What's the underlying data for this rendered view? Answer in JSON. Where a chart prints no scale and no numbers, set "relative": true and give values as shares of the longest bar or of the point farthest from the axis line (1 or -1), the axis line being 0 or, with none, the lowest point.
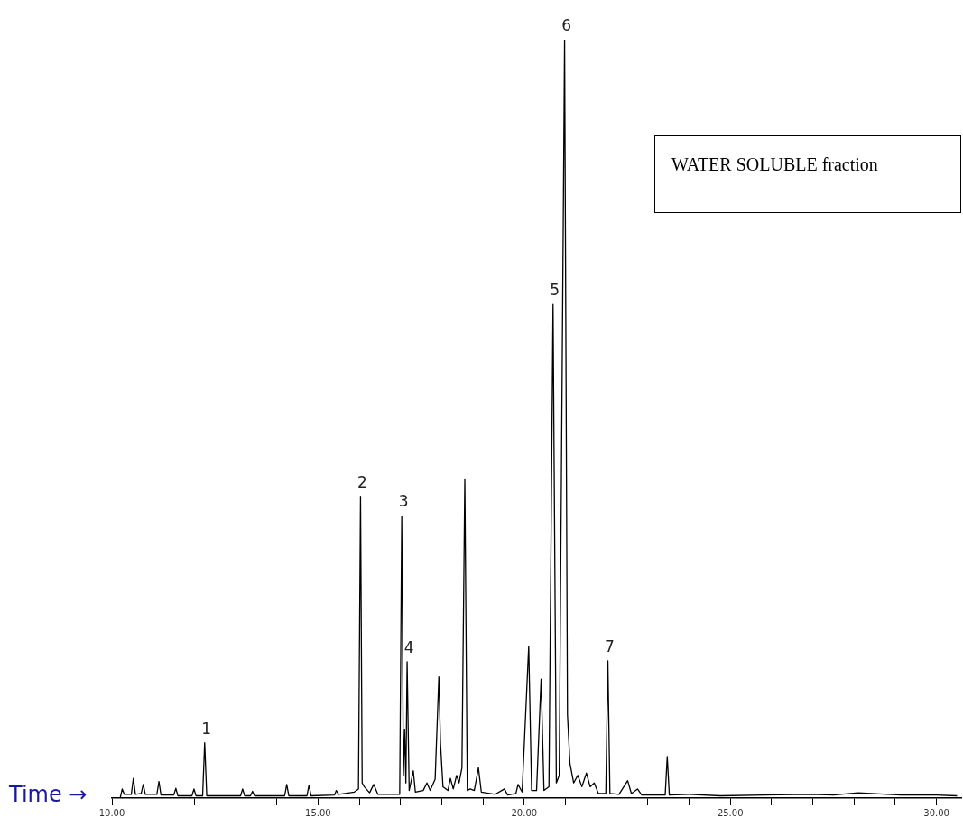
{
  "chart_data": {
    "type": "line",
    "relative": true,
    "xlabel": "Time →",
    "legend": false,
    "grid": false,
    "marker": "none",
    "line_style": "solid",
    "xlim": [
      10,
      30.6
    ],
    "xticks": [
      {
        "value": 10,
        "label": "10.00"
      },
      {
        "value": 11,
        "label": null
      },
      {
        "value": 12,
        "label": null
      },
      {
        "value": 13,
        "label": null
      },
      {
        "value": 14,
        "label": null
      },
      {
        "value": 15,
        "label": "15.00"
      },
      {
        "value": 16,
        "label": null
      },
      {
        "value": 17,
        "label": null
      },
      {
        "value": 18,
        "label": null
      },
      {
        "value": 19,
        "label": null
      },
      {
        "value": 20,
        "label": "20.00"
      },
      {
        "value": 21,
        "label": null
      },
      {
        "value": 22,
        "label": null
      },
      {
        "value": 23,
        "label": null
      },
      {
        "value": 24,
        "label": null
      },
      {
        "value": 25,
        "label": "25.00"
      },
      {
        "value": 26,
        "label": null
      },
      {
        "value": 27,
        "label": null
      },
      {
        "value": 28,
        "label": null
      },
      {
        "value": 29,
        "label": null
      },
      {
        "value": 30,
        "label": "30.00"
      }
    ],
    "series": [
      {
        "color": "#000000",
        "x": [
          10.2,
          10.25,
          10.3,
          10.47,
          10.52,
          10.57,
          10.71,
          10.76,
          10.81,
          11.09,
          11.14,
          11.19,
          11.5,
          11.55,
          11.6,
          11.94,
          11.99,
          12.04,
          12.2,
          12.25,
          12.3,
          13.12,
          13.17,
          13.22,
          13.36,
          13.41,
          13.46,
          14.19,
          14.24,
          14.29,
          14.73,
          14.78,
          14.83,
          15.4,
          15.44,
          15.5,
          15.88,
          15.98,
          16.03,
          16.07,
          16.12,
          16.25,
          16.35,
          16.45,
          16.98,
          17.03,
          17.07,
          17.1,
          17.13,
          17.16,
          17.21,
          17.31,
          17.36,
          17.55,
          17.64,
          17.72,
          17.84,
          17.93,
          17.97,
          18.03,
          18.15,
          18.21,
          18.28,
          18.36,
          18.42,
          18.49,
          18.56,
          18.62,
          18.69,
          18.79,
          18.89,
          18.96,
          19.3,
          19.52,
          19.6,
          19.8,
          19.85,
          19.95,
          20.11,
          20.18,
          20.3,
          20.41,
          20.48,
          20.6,
          20.7,
          20.78,
          20.85,
          20.98,
          21.05,
          21.11,
          21.2,
          21.3,
          21.4,
          21.51,
          21.6,
          21.7,
          21.8,
          21.98,
          22.03,
          22.08,
          22.3,
          22.51,
          22.6,
          22.75,
          22.85,
          23.42,
          23.47,
          23.52,
          24.0,
          24.76,
          25.8,
          26.94,
          27.5,
          28.1,
          29.13,
          30.0,
          30.5
        ],
        "values": [
          0,
          0.012,
          0.005,
          0.005,
          0.026,
          0.005,
          0.006,
          0.018,
          0.005,
          0.005,
          0.022,
          0.004,
          0.004,
          0.013,
          0.003,
          0.003,
          0.012,
          0.003,
          0.003,
          0.073,
          0.003,
          0.003,
          0.012,
          0.003,
          0.003,
          0.009,
          0.003,
          0.003,
          0.018,
          0.003,
          0.003,
          0.017,
          0.003,
          0.004,
          0.01,
          0.005,
          0.008,
          0.012,
          0.398,
          0.02,
          0.015,
          0.007,
          0.018,
          0.005,
          0.005,
          0.372,
          0.03,
          0.09,
          0.02,
          0.18,
          0.01,
          0.036,
          0.008,
          0.01,
          0.02,
          0.01,
          0.025,
          0.16,
          0.072,
          0.015,
          0.01,
          0.026,
          0.012,
          0.03,
          0.02,
          0.04,
          0.421,
          0.01,
          0.012,
          0.01,
          0.04,
          0.008,
          0.005,
          0.012,
          0.004,
          0.006,
          0.018,
          0.008,
          0.2,
          0.01,
          0.01,
          0.157,
          0.01,
          0.015,
          0.651,
          0.02,
          0.03,
          1.0,
          0.11,
          0.046,
          0.02,
          0.03,
          0.015,
          0.033,
          0.015,
          0.02,
          0.006,
          0.006,
          0.181,
          0.006,
          0.005,
          0.023,
          0.006,
          0.012,
          0.004,
          0.004,
          0.055,
          0.004,
          0.005,
          0.003,
          0.004,
          0.005,
          0.004,
          0.007,
          0.004,
          0.004,
          0.003
        ]
      }
    ],
    "annotations": [
      {
        "text": "1",
        "x": 12.25,
        "y": 0.073
      },
      {
        "text": "2",
        "x": 16.03,
        "y": 0.398
      },
      {
        "text": "3",
        "x": 17.03,
        "y": 0.372
      },
      {
        "text": "4",
        "x": 17.16,
        "y": 0.18
      },
      {
        "text": "5",
        "x": 20.7,
        "y": 0.651
      },
      {
        "text": "6",
        "x": 20.98,
        "y": 1.0
      },
      {
        "text": "7",
        "x": 22.03,
        "y": 0.181
      },
      "WATER SOLUBLE fraction"
    ]
  }
}
